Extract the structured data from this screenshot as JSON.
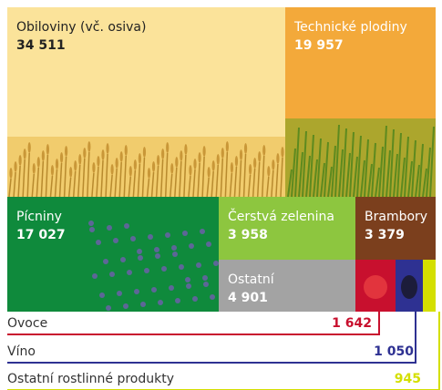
{
  "chart_data": {
    "type": "treemap",
    "categories": [
      "Obiloviny (vč. osiva)",
      "Technické plodiny",
      "Pícniny",
      "Čerstvá zelenina",
      "Brambory",
      "Ostatní",
      "Ovoce",
      "Víno",
      "Ostatní rostlinné produkty"
    ],
    "values": [
      34511,
      19957,
      17027,
      3958,
      3379,
      4901,
      1642,
      1050,
      945
    ],
    "value_labels": [
      "34 511",
      "19 957",
      "17 027",
      "3 958",
      "3 379",
      "4 901",
      "1 642",
      "1 050",
      "945"
    ],
    "colors": [
      "#fbe39a",
      "#f3a93a",
      "#0f8a3c",
      "#8dc63f",
      "#7b3f1d",
      "#a3a3a3",
      "#c8102e",
      "#2e3192",
      "#d4df00"
    ]
  }
}
